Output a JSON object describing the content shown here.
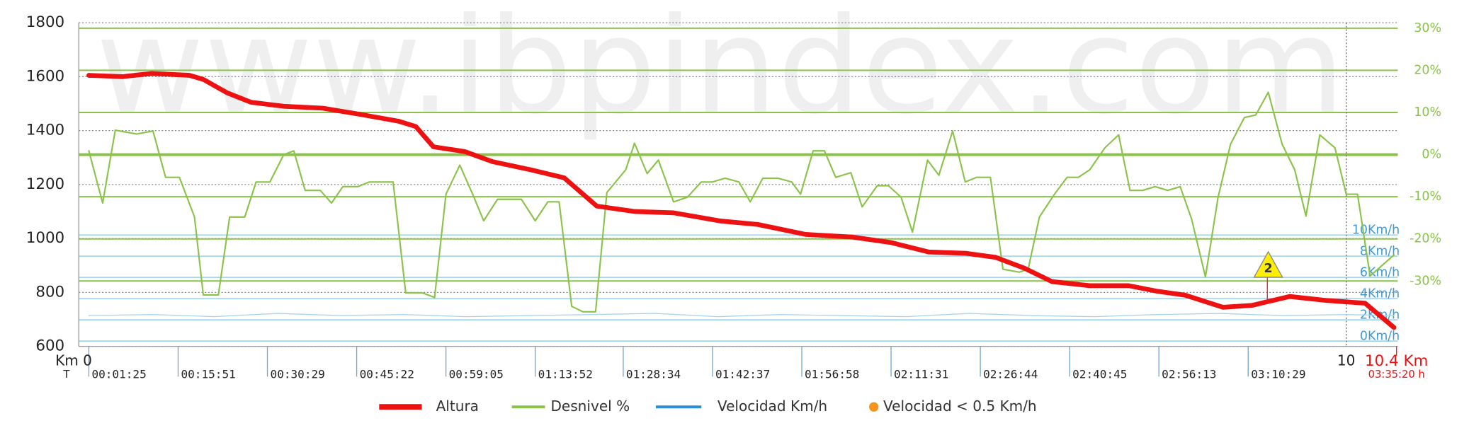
{
  "chart_data": {
    "type": "line",
    "watermark": "www.ibpindex.com",
    "xlim": [
      -0.08,
      10.41
    ],
    "xticks": [
      {
        "value": 0,
        "label": "Km 0"
      },
      10,
      {
        "value": 10.4,
        "label": "10.4 Km"
      }
    ],
    "time_axis_label": "T",
    "time_ticks": [
      {
        "value": 0,
        "label": "00:01:25"
      },
      {
        "value": 0.71,
        "label": "00:15:51"
      },
      {
        "value": 1.42,
        "label": "00:30:29"
      },
      {
        "value": 2.13,
        "label": "00:45:22"
      },
      {
        "value": 2.84,
        "label": "00:59:05"
      },
      {
        "value": 3.55,
        "label": "01:13:52"
      },
      {
        "value": 4.25,
        "label": "01:28:34"
      },
      {
        "value": 4.96,
        "label": "01:42:37"
      },
      {
        "value": 5.67,
        "label": "01:56:58"
      },
      {
        "value": 6.38,
        "label": "02:11:31"
      },
      {
        "value": 7.09,
        "label": "02:26:44"
      },
      {
        "value": 7.8,
        "label": "02:40:45"
      },
      {
        "value": 8.51,
        "label": "02:56:13"
      },
      {
        "value": 9.22,
        "label": "03:10:29"
      }
    ],
    "total_time": "03:35:20 h",
    "ylim": [
      600,
      1800
    ],
    "yticks": [
      600,
      800,
      1000,
      1200,
      1400,
      1600,
      1800
    ],
    "y2lim": [
      -45.5,
      31.3
    ],
    "y2ticks": [
      {
        "value": 30,
        "label": "30%"
      },
      {
        "value": 20,
        "label": "20%"
      },
      {
        "value": 10,
        "label": "10%"
      },
      {
        "value": 0,
        "label": "0%"
      },
      {
        "value": -10,
        "label": "-10%"
      },
      {
        "value": -20,
        "label": "-20%"
      },
      {
        "value": -30,
        "label": "-30%"
      }
    ],
    "y3lim": [
      -0.5,
      30
    ],
    "y3ticks": [
      {
        "value": 10,
        "label": "10Km/h"
      },
      {
        "value": 8,
        "label": "8Km/h"
      },
      {
        "value": 6,
        "label": "6Km/h"
      },
      {
        "value": 4,
        "label": "4Km/h"
      },
      {
        "value": 2,
        "label": "2Km/h"
      },
      {
        "value": 0,
        "label": "0Km/h"
      }
    ],
    "series": [
      {
        "name": "Altura",
        "color": "#ee1111",
        "x": [
          0,
          0.27,
          0.5,
          0.8,
          0.91,
          1.1,
          1.29,
          1.55,
          1.86,
          2.16,
          2.46,
          2.6,
          2.74,
          2.99,
          3.21,
          3.51,
          3.78,
          4.04,
          4.34,
          4.65,
          5.02,
          5.32,
          5.7,
          6.08,
          6.38,
          6.68,
          6.98,
          7.21,
          7.44,
          7.66,
          7.96,
          8.27,
          8.49,
          8.72,
          9.02,
          9.25,
          9.55,
          9.85,
          10.15,
          10.38
        ],
        "values": [
          1605,
          1600,
          1612,
          1605,
          1590,
          1540,
          1505,
          1490,
          1483,
          1460,
          1435,
          1415,
          1340,
          1322,
          1285,
          1255,
          1225,
          1120,
          1100,
          1095,
          1065,
          1052,
          1015,
          1005,
          985,
          950,
          945,
          930,
          890,
          840,
          825,
          825,
          805,
          790,
          745,
          752,
          785,
          770,
          760,
          670
        ]
      },
      {
        "name": "Desnivel %",
        "color": "#8bc34a",
        "axis": "y2",
        "x": [
          0,
          0.11,
          0.21,
          0.38,
          0.51,
          0.61,
          0.72,
          0.84,
          0.91,
          1.03,
          1.12,
          1.24,
          1.33,
          1.44,
          1.55,
          1.63,
          1.72,
          1.84,
          1.93,
          2.02,
          2.14,
          2.23,
          2.42,
          2.52,
          2.65,
          2.75,
          2.84,
          2.95,
          3.05,
          3.14,
          3.25,
          3.44,
          3.55,
          3.65,
          3.74,
          3.84,
          3.93,
          4.03,
          4.12,
          4.27,
          4.34,
          4.44,
          4.53,
          4.65,
          4.76,
          4.87,
          4.96,
          5.06,
          5.17,
          5.26,
          5.36,
          5.48,
          5.59,
          5.66,
          5.76,
          5.85,
          5.94,
          6.06,
          6.15,
          6.27,
          6.36,
          6.46,
          6.55,
          6.67,
          6.76,
          6.87,
          6.97,
          7.06,
          7.17,
          7.27,
          7.4,
          7.47,
          7.56,
          7.68,
          7.78,
          7.87,
          7.96,
          8.08,
          8.19,
          8.28,
          8.38,
          8.48,
          8.58,
          8.68,
          8.77,
          8.88,
          8.98,
          9.08,
          9.19,
          9.28,
          9.38,
          9.49,
          9.59,
          9.68,
          9.79,
          9.91,
          10.0,
          10.09,
          10.19,
          10.38
        ],
        "values": [
          0.9,
          -11.5,
          5.8,
          4.9,
          5.6,
          -5.4,
          -5.4,
          -14.8,
          -33.3,
          -33.3,
          -14.8,
          -14.8,
          -6.5,
          -6.5,
          0,
          0.9,
          -8.5,
          -8.5,
          -11.5,
          -7.6,
          -7.6,
          -6.5,
          -6.5,
          -32.8,
          -32.8,
          -33.9,
          -9.4,
          -2.5,
          -9.2,
          -15.7,
          -10.6,
          -10.6,
          -15.7,
          -11.2,
          -11.2,
          -36,
          -37.3,
          -37.3,
          -9,
          -3.6,
          2.7,
          -4.5,
          -1.3,
          -11.2,
          -10.1,
          -6.5,
          -6.5,
          -5.6,
          -6.5,
          -11.2,
          -5.6,
          -5.6,
          -6.5,
          -9.4,
          0.9,
          0.9,
          -5.4,
          -4.3,
          -12.4,
          -7.4,
          -7.4,
          -10.1,
          -18.4,
          -1.3,
          -4.9,
          5.6,
          -6.5,
          -5.4,
          -5.4,
          -27.2,
          -27.9,
          -27.2,
          -14.8,
          -9.4,
          -5.4,
          -5.4,
          -3.6,
          1.6,
          4.7,
          -8.5,
          -8.5,
          -7.6,
          -8.5,
          -7.6,
          -15.3,
          -29,
          -10.3,
          2.5,
          8.8,
          9.4,
          14.8,
          2.5,
          -3.6,
          -14.6,
          4.7,
          1.6,
          -9.4,
          -9.4,
          -28.8,
          -23.8
        ]
      },
      {
        "name": "Velocidad Km/h",
        "color": "#2a8fd6",
        "axis": "y3",
        "x": [
          0,
          0.5,
          1,
          1.5,
          2,
          2.5,
          3,
          3.5,
          4,
          4.5,
          5,
          5.5,
          6,
          6.5,
          7,
          7.5,
          8,
          8.5,
          9,
          9.5,
          10,
          10.38
        ],
        "values": [
          2.4,
          2.5,
          2.3,
          2.6,
          2.4,
          2.5,
          2.3,
          2.4,
          2.5,
          2.6,
          2.3,
          2.5,
          2.4,
          2.3,
          2.6,
          2.4,
          2.3,
          2.5,
          2.6,
          2.4,
          2.5,
          2.4
        ]
      }
    ],
    "stop_marker_legend": {
      "name": "Velocidad < 0.5 Km/h",
      "color": "#f7941d"
    },
    "annotations": [
      {
        "label": "2",
        "x": 9.38
      }
    ]
  }
}
